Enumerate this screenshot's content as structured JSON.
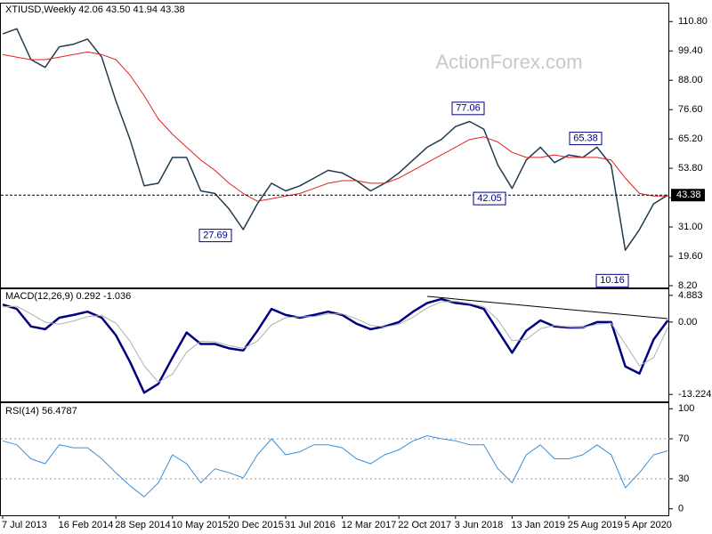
{
  "chart_data": [
    {
      "type": "line",
      "title": "XTIUSD,Weekly  42.06 43.50 41.94 43.38",
      "watermark": "ActionForex.com",
      "categories": [
        "7 Jul 2013",
        null,
        null,
        null,
        "16 Feb 2014",
        null,
        null,
        null,
        "28 Sep 2014",
        null,
        null,
        null,
        "10 May 2015",
        null,
        null,
        null,
        "20 Dec 2015",
        null,
        null,
        null,
        "31 Jul 2016",
        null,
        null,
        null,
        "12 Mar 2017",
        null,
        null,
        null,
        "22 Oct 2017",
        null,
        null,
        null,
        "3 Jun 2018",
        null,
        null,
        null,
        "13 Jan 2019",
        null,
        null,
        null,
        "25 Aug 2019",
        null,
        null,
        null,
        "5 Apr 2020",
        null,
        null,
        null
      ],
      "series": [
        {
          "color": "#1f3b4d",
          "values": [
            106,
            108,
            96,
            93,
            101,
            102,
            104,
            97,
            80,
            65,
            47,
            48,
            58,
            58,
            45,
            44,
            38,
            30,
            40,
            48,
            45,
            47,
            50,
            53,
            52,
            49,
            45,
            48,
            52,
            57,
            62,
            65,
            70,
            72,
            69,
            55,
            46,
            57,
            62,
            56,
            59,
            58,
            62,
            55,
            22,
            30,
            40,
            43.38
          ]
        },
        {
          "color": "#e02020",
          "values": [
            98,
            97,
            96,
            96,
            97,
            98,
            99,
            98,
            96,
            90,
            82,
            73,
            67,
            62,
            57,
            53,
            48,
            44,
            41,
            42,
            43,
            44,
            46,
            48,
            49,
            49,
            48,
            48,
            50,
            53,
            56,
            59,
            62,
            65,
            66,
            64,
            60,
            58,
            58,
            59,
            58,
            58,
            58,
            57,
            50,
            44,
            43,
            43
          ]
        }
      ],
      "ylim": [
        7.5,
        117.8
      ],
      "yticks": [
        {
          "value": 8.2,
          "label": "8.20"
        },
        {
          "value": 19.6,
          "label": "19.60"
        },
        {
          "value": 31.0,
          "label": "31.00"
        },
        {
          "value": 42.4,
          "label": "42.40"
        },
        {
          "value": 53.8,
          "label": "53.80"
        },
        {
          "value": 65.2,
          "label": "65.20"
        },
        {
          "value": 76.6,
          "label": "76.60"
        },
        {
          "value": 88.0,
          "label": "88.00"
        },
        {
          "value": 99.4,
          "label": "99.40"
        },
        {
          "value": 110.8,
          "label": "110.80"
        }
      ],
      "annotations": [
        27.69,
        42.05,
        77.06,
        65.38,
        10.16
      ],
      "last_price": 43.38
    },
    {
      "type": "line",
      "title": "MACD(12,26,9) 0.292 -1.036",
      "series": [
        {
          "color": "#000080",
          "values": [
            3.2,
            2.4,
            -0.8,
            -1.3,
            0.8,
            1.3,
            1.9,
            0.8,
            -2.4,
            -7.3,
            -12.9,
            -11.3,
            -6.5,
            -1.9,
            -4,
            -4,
            -4.8,
            -5.2,
            -1.6,
            2.4,
            1.3,
            0.8,
            1.3,
            1.9,
            1.3,
            -0.3,
            -1.3,
            -0.8,
            0,
            1.9,
            3.5,
            4.2,
            3.5,
            3.2,
            2.4,
            -1.6,
            -5.6,
            -1.6,
            0.3,
            -0.8,
            -1,
            -1,
            0,
            0,
            -8.1,
            -9.4,
            -3.2,
            0.3
          ]
        },
        {
          "color": "#b0b0b0",
          "values": [
            2.8,
            2.9,
            1.5,
            0,
            -0.4,
            0.2,
            1.0,
            1.2,
            -0.2,
            -3.5,
            -8.0,
            -11.0,
            -9.5,
            -5.5,
            -3.5,
            -3.6,
            -4.3,
            -4.8,
            -3.5,
            -0.5,
            0.8,
            1.0,
            1.0,
            1.5,
            1.5,
            0.6,
            -0.6,
            -0.9,
            -0.4,
            0.9,
            2.6,
            3.7,
            3.8,
            3.4,
            2.8,
            0.4,
            -3.4,
            -3.2,
            -1.2,
            -0.6,
            -0.9,
            -1.0,
            -0.4,
            -0.2,
            -4.0,
            -8.0,
            -6.5,
            -1.0
          ]
        }
      ],
      "ylim": [
        -14.5,
        6.0
      ],
      "yticks": [
        4.883,
        {
          "value": 0,
          "label": "0.00"
        },
        -13.224
      ]
    },
    {
      "type": "line",
      "title": "RSI(14) 56.4787",
      "series": [
        {
          "color": "#3a8fd9",
          "values": [
            68,
            64,
            50,
            45,
            64,
            61,
            61,
            50,
            36,
            23,
            12,
            26,
            54,
            45,
            26,
            40,
            36,
            31,
            54,
            70,
            54,
            57,
            64,
            64,
            61,
            50,
            45,
            54,
            59,
            68,
            73,
            70,
            68,
            64,
            64,
            40,
            26,
            54,
            64,
            50,
            50,
            54,
            64,
            54,
            21,
            36,
            54,
            58
          ]
        }
      ],
      "ylim": [
        -6.5,
        105.6
      ],
      "yticks": [
        0,
        30,
        70,
        100
      ]
    }
  ]
}
